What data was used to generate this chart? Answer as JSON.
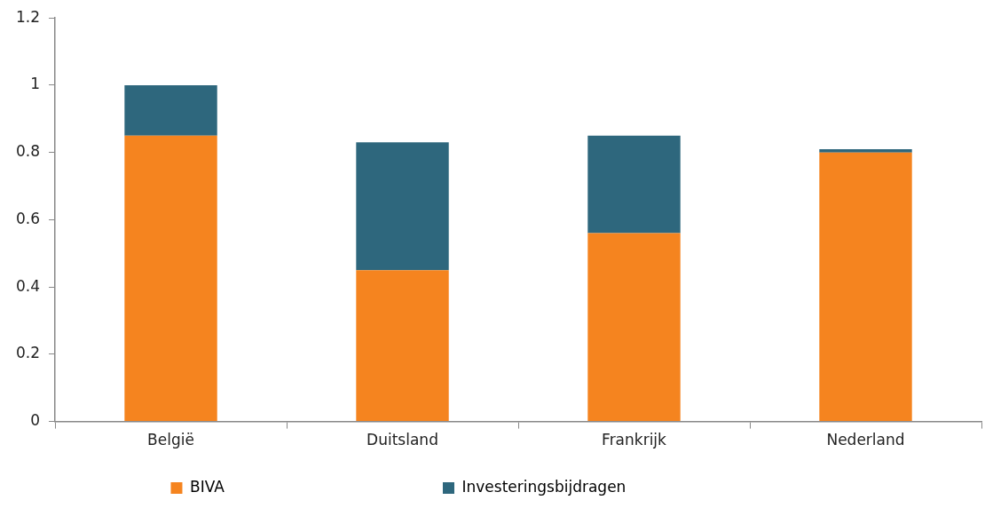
{
  "chart_data": {
    "type": "bar",
    "stacked": true,
    "categories": [
      "België",
      "Duitsland",
      "Frankrijk",
      "Nederland"
    ],
    "series": [
      {
        "name": "BIVA",
        "color": "#f5841f",
        "values": [
          0.85,
          0.45,
          0.56,
          0.8
        ]
      },
      {
        "name": "Investeringsbijdragen",
        "color": "#2e677d",
        "values": [
          0.15,
          0.38,
          0.29,
          0.01
        ]
      }
    ],
    "ylim": [
      0,
      1.2
    ],
    "yticks": [
      0,
      0.2,
      0.4,
      0.6,
      0.8,
      1,
      1.2
    ],
    "legend": "bottom"
  }
}
